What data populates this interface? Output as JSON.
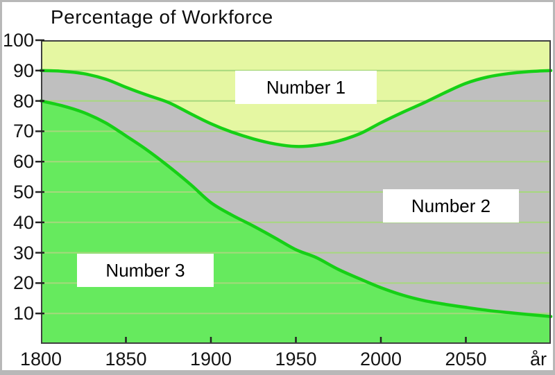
{
  "page": {
    "title": "Percentage of Workforce"
  },
  "chart_data": {
    "type": "area",
    "title": "Percentage of Workforce",
    "xlabel": "år",
    "ylabel": "Percentage of Workforce",
    "xlim": [
      1800,
      2100
    ],
    "ylim": [
      0,
      100
    ],
    "x_ticks": [
      1850,
      1900,
      1950,
      2000,
      2050
    ],
    "x_tick_labels": [
      "1800",
      "1850",
      "1900",
      "1950",
      "2000",
      "2050"
    ],
    "x_tick_label_years": [
      1800,
      1850,
      1900,
      1950,
      2000,
      2050
    ],
    "axis_unit_label": "år",
    "y_ticks": [
      10,
      20,
      30,
      40,
      50,
      60,
      70,
      80,
      90,
      100
    ],
    "grid": "horizontal gridlines every 10 units",
    "legend_position": "inline white label boxes on areas",
    "regions": [
      {
        "label": "Number 1",
        "description": "top area, above upper boundary curve up to 100",
        "color": "#e5f7a2"
      },
      {
        "label": "Number 2",
        "description": "middle area, between upper and lower boundary curves",
        "color": "#bfbfbf"
      },
      {
        "label": "Number 3",
        "description": "bottom area, below lower boundary curve",
        "color": "#66ea5e"
      }
    ],
    "series": [
      {
        "name": "upper boundary (Number 1 / Number 2)",
        "points": [
          [
            1800,
            90
          ],
          [
            1812,
            89.8
          ],
          [
            1825,
            89
          ],
          [
            1838,
            87.2
          ],
          [
            1850,
            84.5
          ],
          [
            1862,
            82
          ],
          [
            1875,
            79.5
          ],
          [
            1888,
            75.8
          ],
          [
            1900,
            72.5
          ],
          [
            1912,
            69.8
          ],
          [
            1925,
            67.5
          ],
          [
            1938,
            65.8
          ],
          [
            1950,
            65
          ],
          [
            1962,
            65.4
          ],
          [
            1975,
            66.8
          ],
          [
            1988,
            69.3
          ],
          [
            2000,
            72.8
          ],
          [
            2013,
            76.3
          ],
          [
            2025,
            79.3
          ],
          [
            2038,
            82.8
          ],
          [
            2050,
            85.8
          ],
          [
            2063,
            87.9
          ],
          [
            2075,
            89
          ],
          [
            2088,
            89.7
          ],
          [
            2100,
            90
          ]
        ]
      },
      {
        "name": "lower boundary (Number 2 / Number 3)",
        "points": [
          [
            1800,
            80
          ],
          [
            1812,
            78.5
          ],
          [
            1825,
            76.2
          ],
          [
            1838,
            72.8
          ],
          [
            1850,
            68.5
          ],
          [
            1862,
            64
          ],
          [
            1875,
            58.5
          ],
          [
            1888,
            52.5
          ],
          [
            1900,
            46.5
          ],
          [
            1912,
            42.5
          ],
          [
            1925,
            38.8
          ],
          [
            1938,
            34.8
          ],
          [
            1950,
            31
          ],
          [
            1962,
            28.4
          ],
          [
            1975,
            24.5
          ],
          [
            1988,
            21.3
          ],
          [
            2000,
            18.5
          ],
          [
            2013,
            16
          ],
          [
            2025,
            14.3
          ],
          [
            2038,
            13
          ],
          [
            2050,
            12
          ],
          [
            2063,
            11
          ],
          [
            2075,
            10.3
          ],
          [
            2088,
            9.6
          ],
          [
            2100,
            9
          ]
        ]
      }
    ],
    "colors": {
      "area_number1": "#e5f7a2",
      "area_number2": "#bfbfbf",
      "area_number3": "#66ea5e",
      "curve": "#16d016",
      "gridline": "#a6d87d",
      "frame": "#3f3f3f",
      "tick": "#222222",
      "text": "#141414",
      "label_box_bg": "#ffffff",
      "page_border": "#b8b8b8"
    }
  }
}
